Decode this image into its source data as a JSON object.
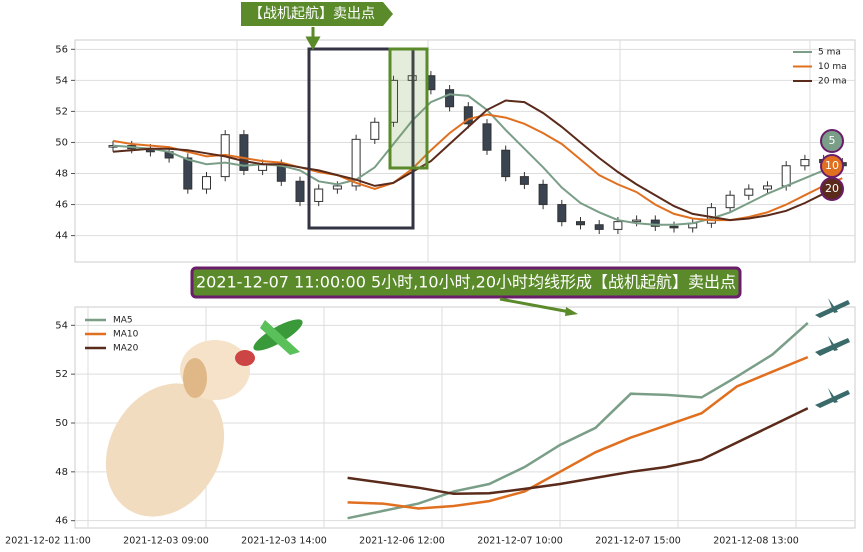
{
  "chart_data": [
    {
      "type": "candlestick",
      "annotation": "【战机起航】卖出点",
      "open": [
        49.7,
        49.8,
        49.6,
        49.4,
        49.0,
        47.0,
        47.8,
        50.5,
        48.2,
        48.6,
        47.5,
        46.2,
        47.0,
        47.2,
        50.2,
        51.3,
        54.0,
        54.3,
        53.4,
        52.3,
        51.2,
        49.5,
        47.8,
        47.3,
        46.0,
        44.9,
        44.7,
        44.4,
        44.9,
        45.0,
        44.6,
        44.5,
        44.8,
        45.8,
        46.6,
        47.0,
        47.2,
        48.5,
        48.9,
        48.7
      ],
      "high": [
        50.1,
        50.1,
        49.9,
        49.7,
        49.3,
        48.1,
        50.8,
        50.8,
        48.9,
        48.9,
        47.8,
        47.3,
        47.5,
        50.5,
        51.6,
        54.3,
        54.6,
        54.6,
        53.7,
        52.6,
        51.5,
        49.8,
        48.1,
        47.6,
        46.3,
        45.2,
        45.0,
        45.2,
        45.3,
        45.3,
        44.9,
        45.1,
        46.1,
        46.9,
        47.3,
        47.5,
        48.8,
        49.2,
        49.2,
        49.0
      ],
      "low": [
        49.4,
        49.3,
        49.1,
        48.7,
        46.7,
        46.7,
        47.5,
        47.9,
        47.9,
        47.2,
        45.9,
        45.9,
        46.7,
        46.9,
        49.9,
        51.0,
        53.7,
        53.1,
        52.0,
        50.9,
        49.2,
        47.5,
        47.0,
        45.7,
        44.6,
        44.4,
        44.1,
        44.1,
        44.6,
        44.3,
        44.2,
        44.2,
        44.5,
        45.5,
        46.3,
        46.7,
        46.9,
        48.2,
        48.4,
        48.2
      ],
      "close": [
        49.8,
        49.6,
        49.4,
        49.0,
        47.0,
        47.8,
        50.5,
        48.2,
        48.6,
        47.5,
        46.2,
        47.0,
        47.2,
        50.2,
        51.3,
        54.0,
        54.3,
        53.4,
        52.3,
        51.2,
        49.5,
        47.8,
        47.3,
        46.0,
        44.9,
        44.7,
        44.4,
        44.9,
        45.0,
        44.6,
        44.5,
        44.8,
        45.8,
        46.6,
        47.0,
        47.2,
        48.5,
        48.9,
        48.7,
        48.5
      ],
      "series": [
        {
          "name": "5 ma",
          "color": "#7a9e87",
          "values": [
            49.8,
            49.7,
            49.6,
            49.4,
            48.9,
            48.6,
            48.7,
            48.5,
            48.6,
            48.5,
            48.2,
            47.5,
            47.3,
            47.6,
            48.4,
            49.9,
            51.4,
            52.6,
            53.1,
            53.0,
            52.1,
            50.8,
            49.6,
            48.4,
            47.1,
            46.1,
            45.5,
            45.0,
            44.8,
            44.7,
            44.7,
            44.8,
            45.1,
            45.5,
            46.1,
            46.7,
            47.2,
            47.7,
            48.2,
            48.6
          ]
        },
        {
          "name": "10 ma",
          "color": "#e07020",
          "values": [
            50.1,
            49.9,
            49.8,
            49.7,
            49.4,
            49.1,
            49.2,
            49.0,
            48.8,
            48.7,
            48.4,
            48.1,
            47.9,
            47.4,
            47.0,
            47.4,
            48.3,
            49.5,
            50.6,
            51.5,
            51.8,
            51.6,
            51.2,
            50.6,
            49.9,
            48.9,
            47.9,
            47.3,
            46.8,
            46.0,
            45.4,
            45.1,
            45.0,
            45.0,
            45.2,
            45.5,
            46.0,
            46.6,
            47.2,
            47.7
          ]
        },
        {
          "name": "20 ma",
          "color": "#5a2a1a",
          "values": [
            49.4,
            49.5,
            49.6,
            49.6,
            49.5,
            49.3,
            49.1,
            48.8,
            48.6,
            48.6,
            48.4,
            48.2,
            47.9,
            47.6,
            47.2,
            47.4,
            48.1,
            48.8,
            49.9,
            51.0,
            52.1,
            52.7,
            52.6,
            51.9,
            51.0,
            50.0,
            49.0,
            48.1,
            47.3,
            46.6,
            45.9,
            45.4,
            45.2,
            45.0,
            45.1,
            45.3,
            45.6,
            46.1,
            46.7,
            47.4
          ]
        }
      ],
      "markers": [
        "5",
        "10",
        "20"
      ],
      "ylim": [
        42.3,
        56.6
      ],
      "yticks": [
        44,
        46,
        48,
        50,
        52,
        54,
        56
      ],
      "grid": true,
      "legend": "upper right"
    },
    {
      "type": "line",
      "title": "2021-12-07 11:00:00 5小时,10小时,20小时均线形成【战机起航】卖出点",
      "x": [
        22,
        25,
        28,
        31,
        34,
        37,
        40,
        43,
        46,
        49,
        52,
        55,
        58,
        61
      ],
      "series": [
        {
          "name": "MA5",
          "color": "#7a9e87",
          "values": [
            46.1,
            46.4,
            46.7,
            47.2,
            47.5,
            48.2,
            49.1,
            49.8,
            51.2,
            51.15,
            51.05,
            51.9,
            52.8,
            54.1
          ]
        },
        {
          "name": "MA10",
          "color": "#e07020",
          "values": [
            46.75,
            46.7,
            46.5,
            46.6,
            46.8,
            47.2,
            48.0,
            48.8,
            49.4,
            49.9,
            50.4,
            51.5,
            52.1,
            52.7
          ]
        },
        {
          "name": "MA20",
          "color": "#5a2a1a",
          "values": [
            47.75,
            47.55,
            47.35,
            47.1,
            47.12,
            47.3,
            47.5,
            47.75,
            48.0,
            48.2,
            48.5,
            49.2,
            49.9,
            50.6
          ]
        }
      ],
      "xlim": [
        -1.1,
        65
      ],
      "xticks": [
        {
          "value": 0,
          "label": "2021-12-02 11:00"
        },
        {
          "value": 10,
          "label": "2021-12-03 09:00"
        },
        {
          "value": 20,
          "label": "2021-12-03 14:00"
        },
        {
          "value": 30,
          "label": "2021-12-06 12:00"
        },
        {
          "value": 40,
          "label": "2021-12-07 10:00"
        },
        {
          "value": 50,
          "label": "2021-12-07 15:00"
        },
        {
          "value": 60,
          "label": "2021-12-08 13:00"
        }
      ],
      "ylim": [
        45.7,
        54.75
      ],
      "yticks": [
        46,
        48,
        50,
        52,
        54
      ],
      "grid": true,
      "legend": "upper left"
    }
  ]
}
